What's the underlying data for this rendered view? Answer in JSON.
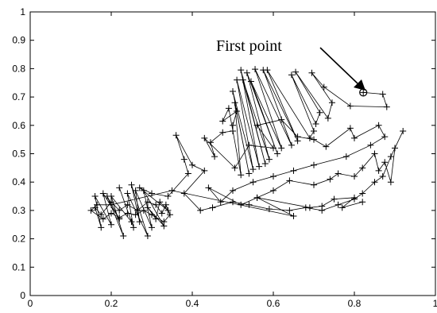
{
  "chart_data": {
    "type": "line",
    "marker": "+",
    "title": "",
    "xlabel": "",
    "ylabel": "",
    "xlim": [
      0,
      1
    ],
    "ylim": [
      0,
      1
    ],
    "grid": false,
    "x_ticks": [
      "0",
      "0.2",
      "0.4",
      "0.6",
      "0.8",
      "1"
    ],
    "x_tick_values": [
      0,
      0.2,
      0.4,
      0.6,
      0.8,
      1
    ],
    "y_ticks": [
      "0",
      "0.1",
      "0.2",
      "0.3",
      "0.4",
      "0.5",
      "0.6",
      "0.7",
      "0.8",
      "0.9",
      "1"
    ],
    "y_tick_values": [
      0,
      0.1,
      0.2,
      0.3,
      0.4,
      0.5,
      0.6,
      0.7,
      0.8,
      0.9,
      1
    ],
    "annotation": {
      "text": "First point",
      "target": [
        0.822,
        0.716
      ]
    },
    "first_point": [
      0.822,
      0.716
    ],
    "series": [
      {
        "points": [
          [
            0.822,
            0.716
          ],
          [
            0.87,
            0.71
          ],
          [
            0.88,
            0.665
          ],
          [
            0.79,
            0.668
          ],
          [
            0.725,
            0.735
          ],
          [
            0.695,
            0.785
          ],
          [
            0.745,
            0.68
          ],
          [
            0.735,
            0.625
          ],
          [
            0.655,
            0.788
          ],
          [
            0.715,
            0.645
          ],
          [
            0.705,
            0.605
          ],
          [
            0.645,
            0.778
          ],
          [
            0.7,
            0.58
          ],
          [
            0.69,
            0.555
          ],
          [
            0.585,
            0.795
          ],
          [
            0.66,
            0.545
          ],
          [
            0.575,
            0.795
          ],
          [
            0.645,
            0.53
          ],
          [
            0.555,
            0.798
          ],
          [
            0.62,
            0.52
          ],
          [
            0.545,
            0.755
          ],
          [
            0.61,
            0.5
          ],
          [
            0.535,
            0.785
          ],
          [
            0.59,
            0.48
          ],
          [
            0.525,
            0.76
          ],
          [
            0.58,
            0.465
          ],
          [
            0.52,
            0.795
          ],
          [
            0.565,
            0.455
          ],
          [
            0.51,
            0.76
          ],
          [
            0.55,
            0.445
          ],
          [
            0.5,
            0.72
          ],
          [
            0.54,
            0.43
          ],
          [
            0.505,
            0.68
          ],
          [
            0.52,
            0.425
          ],
          [
            0.49,
            0.66
          ],
          [
            0.475,
            0.615
          ],
          [
            0.51,
            0.65
          ],
          [
            0.5,
            0.6
          ],
          [
            0.5,
            0.58
          ],
          [
            0.475,
            0.575
          ],
          [
            0.445,
            0.54
          ],
          [
            0.455,
            0.49
          ],
          [
            0.43,
            0.555
          ],
          [
            0.505,
            0.45
          ],
          [
            0.54,
            0.53
          ],
          [
            0.6,
            0.52
          ],
          [
            0.56,
            0.6
          ],
          [
            0.62,
            0.62
          ],
          [
            0.66,
            0.56
          ],
          [
            0.7,
            0.55
          ],
          [
            0.73,
            0.525
          ],
          [
            0.79,
            0.59
          ],
          [
            0.8,
            0.555
          ],
          [
            0.86,
            0.6
          ],
          [
            0.875,
            0.56
          ],
          [
            0.84,
            0.53
          ],
          [
            0.78,
            0.49
          ],
          [
            0.7,
            0.46
          ],
          [
            0.65,
            0.44
          ],
          [
            0.6,
            0.42
          ],
          [
            0.55,
            0.4
          ],
          [
            0.5,
            0.37
          ],
          [
            0.47,
            0.33
          ],
          [
            0.44,
            0.38
          ],
          [
            0.52,
            0.32
          ],
          [
            0.56,
            0.345
          ],
          [
            0.6,
            0.37
          ],
          [
            0.64,
            0.405
          ],
          [
            0.7,
            0.39
          ],
          [
            0.74,
            0.41
          ],
          [
            0.76,
            0.43
          ],
          [
            0.8,
            0.42
          ],
          [
            0.82,
            0.45
          ],
          [
            0.85,
            0.5
          ],
          [
            0.86,
            0.44
          ],
          [
            0.875,
            0.47
          ],
          [
            0.89,
            0.4
          ],
          [
            0.9,
            0.52
          ],
          [
            0.92,
            0.58
          ],
          [
            0.89,
            0.49
          ],
          [
            0.87,
            0.42
          ],
          [
            0.85,
            0.4
          ],
          [
            0.82,
            0.36
          ],
          [
            0.8,
            0.34
          ],
          [
            0.76,
            0.32
          ],
          [
            0.72,
            0.3
          ],
          [
            0.68,
            0.31
          ],
          [
            0.64,
            0.3
          ],
          [
            0.59,
            0.305
          ],
          [
            0.54,
            0.32
          ],
          [
            0.5,
            0.33
          ],
          [
            0.45,
            0.31
          ],
          [
            0.42,
            0.3
          ],
          [
            0.38,
            0.36
          ],
          [
            0.43,
            0.44
          ],
          [
            0.4,
            0.46
          ],
          [
            0.36,
            0.565
          ],
          [
            0.38,
            0.48
          ],
          [
            0.39,
            0.43
          ],
          [
            0.34,
            0.35
          ],
          [
            0.3,
            0.36
          ],
          [
            0.27,
            0.38
          ],
          [
            0.34,
            0.3
          ],
          [
            0.32,
            0.33
          ],
          [
            0.31,
            0.27
          ],
          [
            0.29,
            0.31
          ],
          [
            0.33,
            0.245
          ],
          [
            0.28,
            0.37
          ],
          [
            0.3,
            0.24
          ],
          [
            0.26,
            0.37
          ],
          [
            0.27,
            0.26
          ],
          [
            0.25,
            0.39
          ],
          [
            0.29,
            0.21
          ],
          [
            0.24,
            0.36
          ],
          [
            0.255,
            0.24
          ],
          [
            0.22,
            0.38
          ],
          [
            0.25,
            0.26
          ],
          [
            0.2,
            0.35
          ],
          [
            0.23,
            0.21
          ],
          [
            0.19,
            0.35
          ],
          [
            0.22,
            0.27
          ],
          [
            0.18,
            0.36
          ],
          [
            0.2,
            0.25
          ],
          [
            0.16,
            0.35
          ],
          [
            0.175,
            0.24
          ],
          [
            0.16,
            0.31
          ],
          [
            0.175,
            0.285
          ],
          [
            0.2,
            0.33
          ],
          [
            0.22,
            0.3
          ],
          [
            0.24,
            0.32
          ],
          [
            0.265,
            0.3
          ],
          [
            0.29,
            0.33
          ],
          [
            0.31,
            0.32
          ],
          [
            0.325,
            0.29
          ],
          [
            0.335,
            0.32
          ],
          [
            0.345,
            0.285
          ],
          [
            0.33,
            0.26
          ],
          [
            0.3,
            0.285
          ],
          [
            0.28,
            0.3
          ],
          [
            0.26,
            0.285
          ],
          [
            0.24,
            0.29
          ],
          [
            0.22,
            0.275
          ],
          [
            0.2,
            0.29
          ],
          [
            0.18,
            0.27
          ],
          [
            0.15,
            0.3
          ],
          [
            0.165,
            0.32
          ],
          [
            0.2,
            0.32
          ],
          [
            0.35,
            0.37
          ],
          [
            0.65,
            0.28
          ],
          [
            0.56,
            0.345
          ],
          [
            0.69,
            0.31
          ],
          [
            0.72,
            0.315
          ],
          [
            0.75,
            0.34
          ],
          [
            0.8,
            0.345
          ],
          [
            0.77,
            0.31
          ],
          [
            0.82,
            0.33
          ]
        ]
      }
    ]
  }
}
